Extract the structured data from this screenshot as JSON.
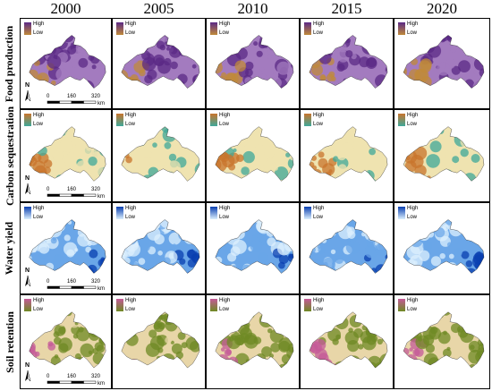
{
  "years": [
    "2000",
    "2005",
    "2010",
    "2015",
    "2020"
  ],
  "rows": [
    {
      "label": "Food production",
      "colors": {
        "high": "#5b2a86",
        "mid": "#a37bbf",
        "low": "#c08a3a"
      },
      "legend_high": "High",
      "legend_low": "Low"
    },
    {
      "label": "Carbon sequestration",
      "colors": {
        "high": "#c8742c",
        "mid": "#efe3b0",
        "low": "#3fa89a"
      },
      "legend_high": "High",
      "legend_low": "Low"
    },
    {
      "label": "Water yield",
      "colors": {
        "high": "#0a3fb0",
        "mid": "#6aa6e8",
        "low": "#dceffd"
      },
      "legend_high": "High",
      "legend_low": "Low"
    },
    {
      "label": "Soil retention",
      "colors": {
        "high": "#c45a98",
        "mid": "#e8d6a8",
        "low": "#6f8a24"
      },
      "legend_high": "High",
      "legend_low": "Low"
    }
  ],
  "scale_bar": {
    "ticks": [
      "0",
      "160",
      "320"
    ],
    "unit": "km"
  },
  "north_arrow": {
    "label": "N",
    "icon": "north-arrow-icon"
  }
}
